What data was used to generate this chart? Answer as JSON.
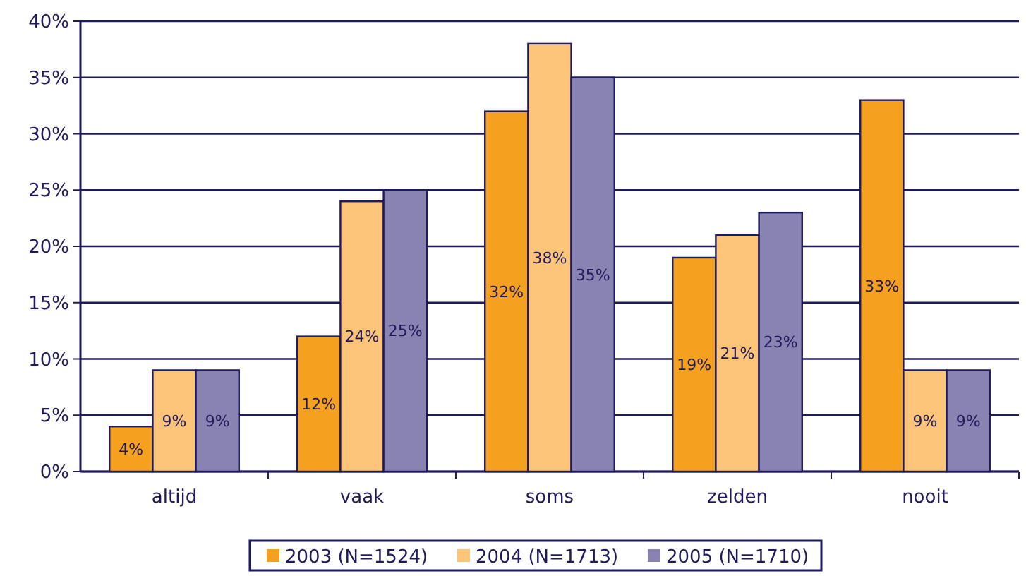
{
  "chart_data": {
    "type": "bar",
    "categories": [
      "altijd",
      "vaak",
      "soms",
      "zelden",
      "nooit"
    ],
    "series": [
      {
        "name": "2003 (N=1524)",
        "color": "#f5a01e",
        "values": [
          4,
          12,
          32,
          19,
          33
        ]
      },
      {
        "name": "2004 (N=1713)",
        "color": "#fbc478",
        "values": [
          9,
          24,
          38,
          21,
          9
        ]
      },
      {
        "name": "2005 (N=1710)",
        "color": "#8883b0",
        "values": [
          9,
          25,
          35,
          23,
          9
        ]
      }
    ],
    "ylim": [
      0,
      40
    ],
    "yticks": [
      {
        "value": 0,
        "label": "0%"
      },
      {
        "value": 5,
        "label": "5%"
      },
      {
        "value": 10,
        "label": "10%"
      },
      {
        "value": 15,
        "label": "15%"
      },
      {
        "value": 20,
        "label": "20%"
      },
      {
        "value": 25,
        "label": "25%"
      },
      {
        "value": 30,
        "label": "30%"
      },
      {
        "value": 35,
        "label": "35%"
      },
      {
        "value": 40,
        "label": "40%"
      }
    ],
    "value_labels": [
      [
        "4%",
        "12%",
        "32%",
        "19%",
        "33%"
      ],
      [
        "9%",
        "24%",
        "38%",
        "21%",
        "9%"
      ],
      [
        "9%",
        "25%",
        "35%",
        "23%",
        "9%"
      ]
    ],
    "grid": "y",
    "legend": "bottom"
  }
}
